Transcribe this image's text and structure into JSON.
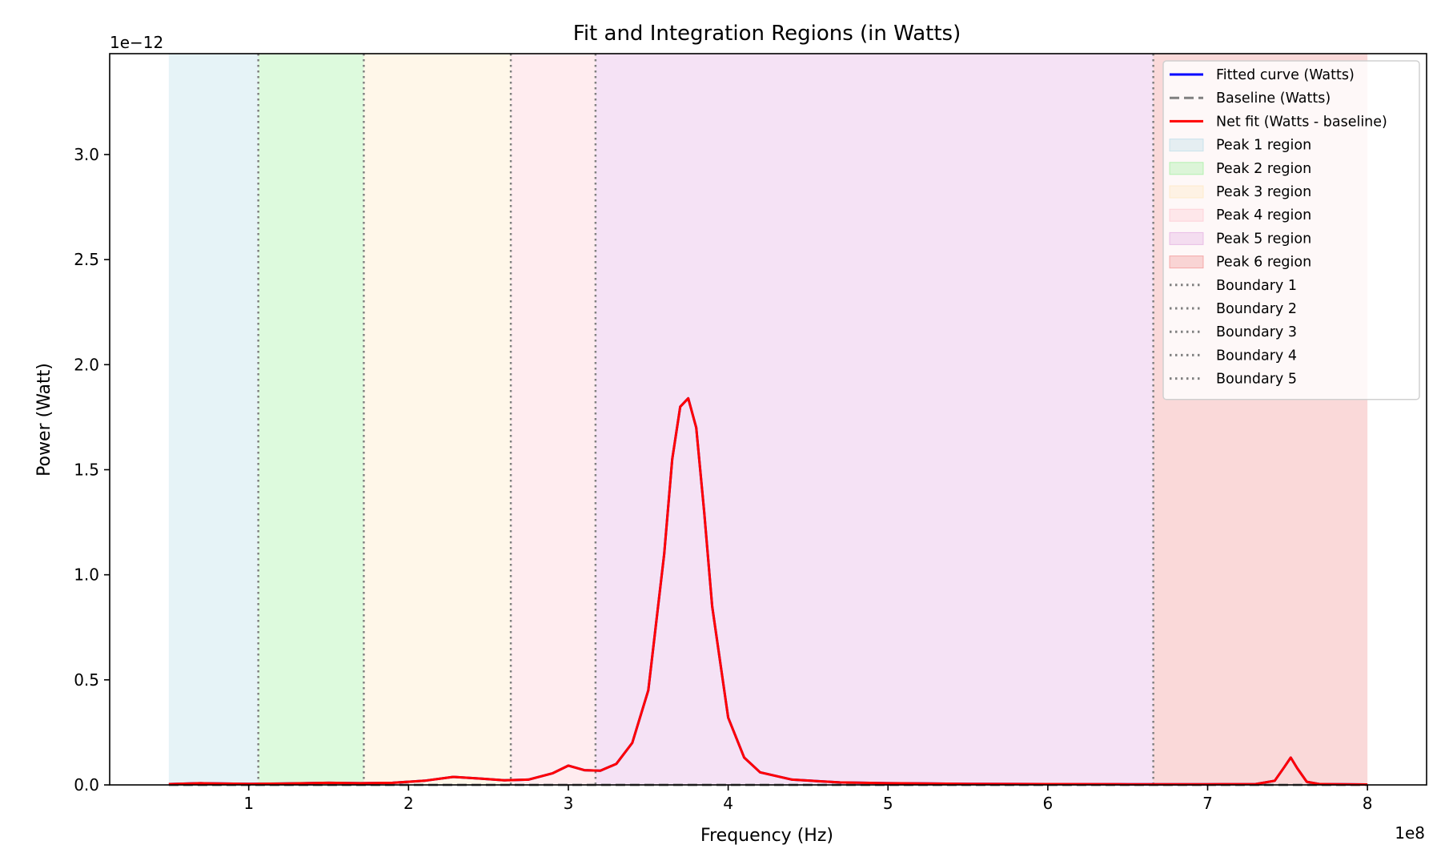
{
  "chart_data": {
    "type": "line",
    "title": "Fit and Integration Regions (in Watts)",
    "xlabel": "Frequency (Hz)",
    "ylabel": "Power (Watt)",
    "x_offset_label": "1e8",
    "y_offset_label": "1e−12",
    "xlim": [
      0.13,
      8.37
    ],
    "ylim": [
      0,
      3.48
    ],
    "x_ticks": [
      1,
      2,
      3,
      4,
      5,
      6,
      7,
      8
    ],
    "x_tick_labels": [
      "1",
      "2",
      "3",
      "4",
      "5",
      "6",
      "7",
      "8"
    ],
    "y_ticks": [
      0,
      0.5,
      1.0,
      1.5,
      2.0,
      2.5,
      3.0
    ],
    "y_tick_labels": [
      "0.0",
      "0.5",
      "1.0",
      "1.5",
      "2.0",
      "2.5",
      "3.0"
    ],
    "grid": false,
    "legend_position": "top-right",
    "regions": [
      {
        "name": "Peak 1 region",
        "x0": 0.5,
        "x1": 1.06,
        "color": "#add8e6",
        "opacity": 0.3
      },
      {
        "name": "Peak 2 region",
        "x0": 1.06,
        "x1": 1.72,
        "color": "#90ee90",
        "opacity": 0.3
      },
      {
        "name": "Peak 3 region",
        "x0": 1.72,
        "x1": 2.64,
        "color": "#ffe4b5",
        "opacity": 0.3
      },
      {
        "name": "Peak 4 region",
        "x0": 2.64,
        "x1": 3.17,
        "color": "#ffc0cb",
        "opacity": 0.3
      },
      {
        "name": "Peak 5 region",
        "x0": 3.17,
        "x1": 6.66,
        "color": "#dda0dd",
        "opacity": 0.3
      },
      {
        "name": "Peak 6 region",
        "x0": 6.66,
        "x1": 8.0,
        "color": "#f08080",
        "opacity": 0.3
      }
    ],
    "boundaries": [
      {
        "name": "Boundary 1",
        "x": 1.06
      },
      {
        "name": "Boundary 2",
        "x": 1.72
      },
      {
        "name": "Boundary 3",
        "x": 2.64
      },
      {
        "name": "Boundary 4",
        "x": 3.17
      },
      {
        "name": "Boundary 5",
        "x": 6.66
      }
    ],
    "series": [
      {
        "name": "Fitted curve (Watts)",
        "color": "#0000ff",
        "style": "solid",
        "x": [
          0.5,
          0.7,
          1.0,
          1.2,
          1.5,
          1.7,
          1.9,
          2.1,
          2.28,
          2.45,
          2.6,
          2.75,
          2.9,
          3.0,
          3.1,
          3.2,
          3.3,
          3.4,
          3.5,
          3.6,
          3.65,
          3.7,
          3.75,
          3.8,
          3.85,
          3.9,
          4.0,
          4.1,
          4.2,
          4.4,
          4.7,
          5.0,
          5.5,
          6.0,
          6.5,
          7.0,
          7.3,
          7.42,
          7.48,
          7.52,
          7.56,
          7.62,
          7.7,
          8.0
        ],
        "y": [
          0.004,
          0.008,
          0.005,
          0.006,
          0.01,
          0.008,
          0.01,
          0.02,
          0.038,
          0.03,
          0.022,
          0.025,
          0.055,
          0.092,
          0.07,
          0.068,
          0.1,
          0.2,
          0.45,
          1.1,
          1.55,
          1.8,
          1.84,
          1.7,
          1.3,
          0.85,
          0.32,
          0.13,
          0.06,
          0.025,
          0.012,
          0.008,
          0.005,
          0.004,
          0.003,
          0.003,
          0.004,
          0.02,
          0.085,
          0.13,
          0.08,
          0.015,
          0.004,
          0.002
        ]
      },
      {
        "name": "Baseline (Watts)",
        "color": "#808080",
        "style": "dashed",
        "x": [
          0.5,
          8.0
        ],
        "y": [
          0.0,
          0.0
        ]
      },
      {
        "name": "Net fit (Watts - baseline)",
        "color": "#ff0000",
        "style": "solid",
        "x": [
          0.5,
          0.7,
          1.0,
          1.2,
          1.5,
          1.7,
          1.9,
          2.1,
          2.28,
          2.45,
          2.6,
          2.75,
          2.9,
          3.0,
          3.1,
          3.2,
          3.3,
          3.4,
          3.5,
          3.6,
          3.65,
          3.7,
          3.75,
          3.8,
          3.85,
          3.9,
          4.0,
          4.1,
          4.2,
          4.4,
          4.7,
          5.0,
          5.5,
          6.0,
          6.5,
          7.0,
          7.3,
          7.42,
          7.48,
          7.52,
          7.56,
          7.62,
          7.7,
          8.0
        ],
        "y": [
          0.004,
          0.008,
          0.005,
          0.006,
          0.01,
          0.008,
          0.01,
          0.02,
          0.038,
          0.03,
          0.022,
          0.025,
          0.055,
          0.092,
          0.07,
          0.068,
          0.1,
          0.2,
          0.45,
          1.1,
          1.55,
          1.8,
          1.84,
          1.7,
          1.3,
          0.85,
          0.32,
          0.13,
          0.06,
          0.025,
          0.012,
          0.008,
          0.005,
          0.004,
          0.003,
          0.003,
          0.004,
          0.02,
          0.085,
          0.13,
          0.08,
          0.015,
          0.004,
          0.002
        ]
      }
    ],
    "legend_entries": [
      {
        "label": "Fitted curve (Watts)",
        "kind": "line",
        "color": "#0000ff",
        "style": "solid"
      },
      {
        "label": "Baseline (Watts)",
        "kind": "line",
        "color": "#808080",
        "style": "dashed"
      },
      {
        "label": "Net fit (Watts - baseline)",
        "kind": "line",
        "color": "#ff0000",
        "style": "solid"
      },
      {
        "label": "Peak 1 region",
        "kind": "patch",
        "color": "#add8e6",
        "opacity": 0.3
      },
      {
        "label": "Peak 2 region",
        "kind": "patch",
        "color": "#90ee90",
        "opacity": 0.3
      },
      {
        "label": "Peak 3 region",
        "kind": "patch",
        "color": "#ffe4b5",
        "opacity": 0.3
      },
      {
        "label": "Peak 4 region",
        "kind": "patch",
        "color": "#ffc0cb",
        "opacity": 0.3
      },
      {
        "label": "Peak 5 region",
        "kind": "patch",
        "color": "#dda0dd",
        "opacity": 0.3
      },
      {
        "label": "Peak 6 region",
        "kind": "patch",
        "color": "#f08080",
        "opacity": 0.3
      },
      {
        "label": "Boundary 1",
        "kind": "line",
        "color": "#808080",
        "style": "dotted"
      },
      {
        "label": "Boundary 2",
        "kind": "line",
        "color": "#808080",
        "style": "dotted"
      },
      {
        "label": "Boundary 3",
        "kind": "line",
        "color": "#808080",
        "style": "dotted"
      },
      {
        "label": "Boundary 4",
        "kind": "line",
        "color": "#808080",
        "style": "dotted"
      },
      {
        "label": "Boundary 5",
        "kind": "line",
        "color": "#808080",
        "style": "dotted"
      }
    ]
  }
}
